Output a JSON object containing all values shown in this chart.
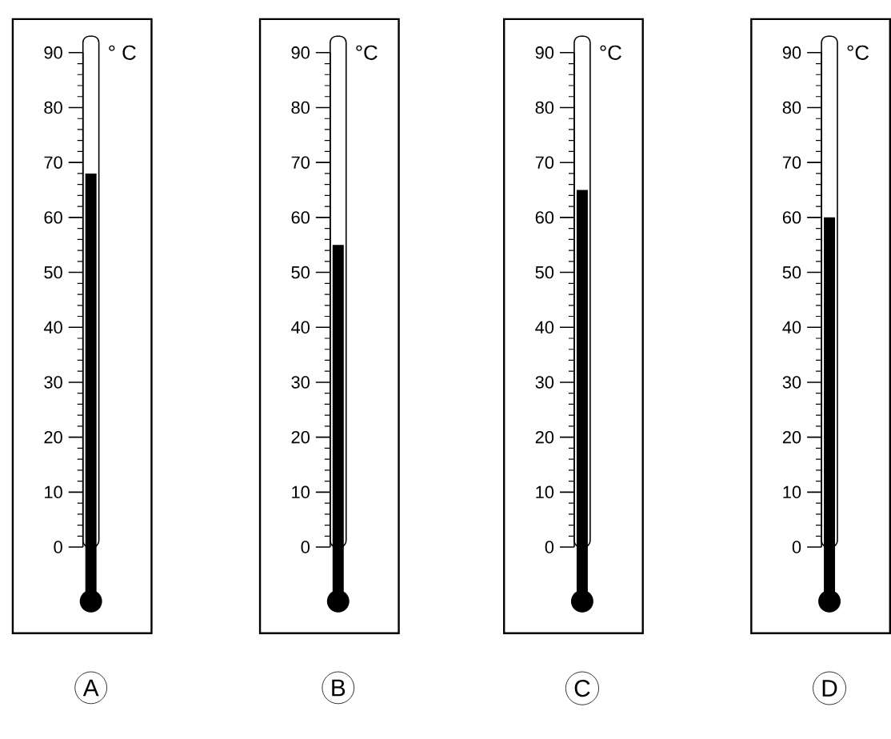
{
  "chart_data": [
    {
      "type": "bar",
      "categories": [
        "A"
      ],
      "values": [
        68
      ],
      "color": "#000000",
      "ylim": [
        0,
        90
      ],
      "yticks": [
        0,
        10,
        20,
        30,
        40,
        50,
        60,
        70,
        80,
        90
      ],
      "ylabel": "° C"
    },
    {
      "type": "bar",
      "categories": [
        "B"
      ],
      "values": [
        55
      ],
      "color": "#000000",
      "ylim": [
        0,
        90
      ],
      "yticks": [
        0,
        10,
        20,
        30,
        40,
        50,
        60,
        70,
        80,
        90
      ],
      "ylabel": "°C"
    },
    {
      "type": "bar",
      "categories": [
        "C"
      ],
      "values": [
        65
      ],
      "color": "#000000",
      "ylim": [
        0,
        90
      ],
      "yticks": [
        0,
        10,
        20,
        30,
        40,
        50,
        60,
        70,
        80,
        90
      ],
      "ylabel": "°C"
    },
    {
      "type": "bar",
      "categories": [
        "D"
      ],
      "values": [
        60
      ],
      "color": "#000000",
      "ylim": [
        0,
        90
      ],
      "yticks": [
        0,
        10,
        20,
        30,
        40,
        50,
        60,
        70,
        80,
        90
      ],
      "ylabel": "°C"
    }
  ]
}
